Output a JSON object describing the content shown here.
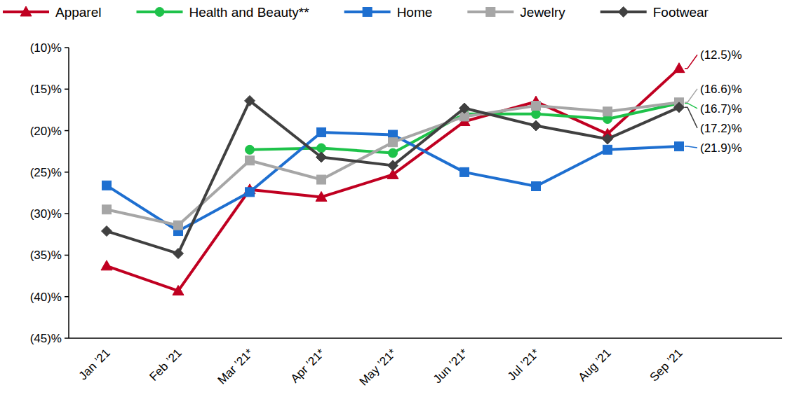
{
  "chart_data": {
    "type": "line",
    "categories": [
      "Jan ’21",
      "Feb ’21",
      "Mar ’21*",
      "Apr ’21*",
      "May ’21*",
      "Jun ’21*",
      "Jul ’21*",
      "Aug ’21",
      "Sep ’21"
    ],
    "ylim": [
      -45,
      -10
    ],
    "yticks": [
      {
        "value": -45,
        "label": "(45)%"
      },
      {
        "value": -40,
        "label": "(40)%"
      },
      {
        "value": -35,
        "label": "(35)%"
      },
      {
        "value": -30,
        "label": "(30)%"
      },
      {
        "value": -25,
        "label": "(25)%"
      },
      {
        "value": -20,
        "label": "(20)%"
      },
      {
        "value": -15,
        "label": "(15)%"
      },
      {
        "value": -10,
        "label": "(10)%"
      }
    ],
    "grid": false,
    "legend": "top",
    "series": [
      {
        "name": "Apparel",
        "color": "#c00021",
        "marker": "triangle",
        "values": [
          -36.3,
          -39.3,
          -27.1,
          -28.0,
          -25.3,
          -18.9,
          -16.5,
          -20.4,
          -12.5
        ],
        "value_labels": [
          null,
          null,
          null,
          null,
          null,
          null,
          null,
          null,
          "(12.5)%"
        ]
      },
      {
        "name": "Health and Beauty**",
        "color": "#1ec24a",
        "marker": "circle",
        "values": [
          null,
          null,
          -22.3,
          -22.1,
          -22.7,
          -18.0,
          -18.0,
          -18.6,
          -16.7
        ],
        "value_labels": [
          null,
          null,
          null,
          null,
          null,
          null,
          null,
          null,
          "(16.7)%"
        ]
      },
      {
        "name": "Home",
        "color": "#1e6fd0",
        "marker": "square",
        "values": [
          -26.6,
          -32.1,
          -27.4,
          -20.2,
          -20.5,
          -25.0,
          -26.7,
          -22.3,
          -21.9
        ],
        "value_labels": [
          null,
          null,
          null,
          null,
          null,
          null,
          null,
          null,
          "(21.9)%"
        ]
      },
      {
        "name": "Jewelry",
        "color": "#a6a6a6",
        "marker": "square",
        "values": [
          -29.5,
          -31.4,
          -23.6,
          -25.9,
          -21.4,
          -18.3,
          -17.0,
          -17.7,
          -16.6
        ],
        "value_labels": [
          null,
          null,
          null,
          null,
          null,
          null,
          null,
          null,
          "(16.6)%"
        ]
      },
      {
        "name": "Footwear",
        "color": "#404040",
        "marker": "diamond",
        "values": [
          -32.1,
          -34.8,
          -16.4,
          -23.2,
          -24.2,
          -17.3,
          -19.4,
          -21.0,
          -17.2
        ],
        "value_labels": [
          null,
          null,
          null,
          null,
          null,
          null,
          null,
          null,
          "(17.2)%"
        ]
      }
    ]
  }
}
